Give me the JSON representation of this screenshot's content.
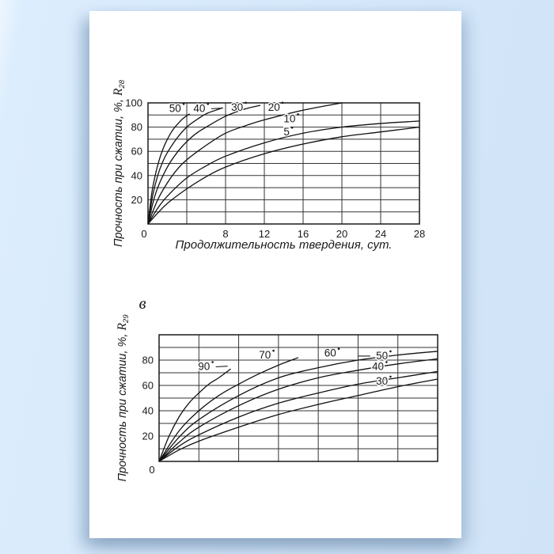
{
  "page": {
    "colors": {
      "background": "#d7e9fb",
      "paper": "#ffffff",
      "ink": "#1a1a1a",
      "grid": "#333333",
      "curve": "#111111"
    }
  },
  "chart_data": [
    {
      "type": "line",
      "panel_label": "",
      "title": "",
      "xlabel": "Продолжительность твердения, сут.",
      "ylabel": {
        "prefix": "Прочность при сжатии, %, ",
        "symbol": "R",
        "sub": "28"
      },
      "xlim": [
        0,
        28
      ],
      "ylim": [
        0,
        100
      ],
      "x_grid_step": 4,
      "y_grid_step": 10,
      "grid": true,
      "legend": "labels on curves",
      "x_ticks": [
        {
          "v": 0,
          "label": "0",
          "dx": -5
        },
        {
          "v": 8,
          "label": "8"
        },
        {
          "v": 12,
          "label": "12"
        },
        {
          "v": 16,
          "label": "16"
        },
        {
          "v": 20,
          "label": "20"
        },
        {
          "v": 24,
          "label": "24"
        },
        {
          "v": 28,
          "label": "28"
        }
      ],
      "y_ticks": [
        {
          "v": 100,
          "label": "100"
        },
        {
          "v": 80,
          "label": "80"
        },
        {
          "v": 60,
          "label": "60"
        },
        {
          "v": 40,
          "label": "40"
        },
        {
          "v": 20,
          "label": "20"
        }
      ],
      "series": [
        {
          "name": "50°C",
          "label": "50",
          "label_pos": [
            2.8,
            95.5
          ],
          "leader": null,
          "points": [
            [
              0,
              0
            ],
            [
              0.4,
              26
            ],
            [
              0.8,
              42
            ],
            [
              1.2,
              54
            ],
            [
              1.6,
              63
            ],
            [
              2,
              70
            ],
            [
              2.5,
              77
            ],
            [
              3,
              82
            ],
            [
              3.6,
              87
            ],
            [
              4.3,
              91
            ]
          ]
        },
        {
          "name": "40°C",
          "label": "40",
          "label_pos": [
            5.3,
            95.5
          ],
          "leader": "right",
          "points": [
            [
              0,
              0
            ],
            [
              0.5,
              24
            ],
            [
              1,
              40
            ],
            [
              1.5,
              51
            ],
            [
              2,
              59
            ],
            [
              3,
              71
            ],
            [
              4,
              80
            ],
            [
              5,
              86
            ],
            [
              6,
              91
            ],
            [
              7,
              94
            ],
            [
              7.7,
              96
            ]
          ]
        },
        {
          "name": "30°C",
          "label": "30",
          "label_pos": [
            9.2,
            96.5
          ],
          "leader": null,
          "points": [
            [
              0,
              0
            ],
            [
              0.5,
              17
            ],
            [
              1,
              30
            ],
            [
              2,
              47
            ],
            [
              3,
              59
            ],
            [
              4,
              68
            ],
            [
              5,
              75
            ],
            [
              6,
              80
            ],
            [
              8,
              89
            ],
            [
              10,
              95
            ],
            [
              11.6,
              98
            ]
          ]
        },
        {
          "name": "20°C",
          "label": "20",
          "label_pos": [
            13.0,
            96.5
          ],
          "leader": null,
          "points": [
            [
              0,
              0
            ],
            [
              1,
              20
            ],
            [
              2,
              34
            ],
            [
              3,
              45
            ],
            [
              4,
              53
            ],
            [
              6,
              65
            ],
            [
              8,
              75
            ],
            [
              10,
              81
            ],
            [
              12,
              86
            ],
            [
              16,
              94
            ],
            [
              20,
              100
            ]
          ]
        },
        {
          "name": "10°C",
          "label": "10",
          "label_pos": [
            14.6,
            87
          ],
          "leader": null,
          "points": [
            [
              0,
              0
            ],
            [
              1,
              13
            ],
            [
              2,
              23
            ],
            [
              4,
              38
            ],
            [
              6,
              48
            ],
            [
              8,
              56
            ],
            [
              12,
              67
            ],
            [
              16,
              75
            ],
            [
              20,
              80
            ],
            [
              24,
              83
            ],
            [
              28,
              85
            ]
          ]
        },
        {
          "name": "5°C",
          "label": "5",
          "label_pos": [
            14.3,
            76
          ],
          "leader": null,
          "points": [
            [
              0,
              0
            ],
            [
              1,
              9
            ],
            [
              2,
              17
            ],
            [
              4,
              29
            ],
            [
              6,
              39
            ],
            [
              8,
              47
            ],
            [
              12,
              58
            ],
            [
              16,
              66
            ],
            [
              20,
              72
            ],
            [
              24,
              76
            ],
            [
              28,
              80
            ]
          ]
        }
      ]
    },
    {
      "type": "line",
      "panel_label": "в",
      "title": "",
      "xlabel": "",
      "ylabel": {
        "prefix": "Прочность при сжатии, %, ",
        "symbol": "R",
        "sub": "29"
      },
      "xlim": [
        0,
        7
      ],
      "ylim": [
        0,
        100
      ],
      "x_grid_step": 1,
      "y_grid_step": 10,
      "grid": true,
      "legend": "labels on curves",
      "x_ticks": [
        {
          "v": 0,
          "label": "0",
          "dx": -9
        }
      ],
      "y_ticks": [
        {
          "v": 80,
          "label": "80"
        },
        {
          "v": 60,
          "label": "60"
        },
        {
          "v": 40,
          "label": "40"
        },
        {
          "v": 20,
          "label": "20"
        }
      ],
      "series": [
        {
          "name": "90°C",
          "label": "90",
          "label_pos": [
            1.13,
            75
          ],
          "leader": "right",
          "points": [
            [
              0,
              0
            ],
            [
              0.25,
              20
            ],
            [
              0.5,
              35
            ],
            [
              0.75,
              46
            ],
            [
              1,
              54
            ],
            [
              1.25,
              61
            ],
            [
              1.5,
              66
            ],
            [
              1.8,
              73
            ]
          ]
        },
        {
          "name": "70°C",
          "label": "70",
          "label_pos": [
            2.66,
            84
          ],
          "leader": null,
          "points": [
            [
              0,
              0
            ],
            [
              0.5,
              24
            ],
            [
              1,
              40
            ],
            [
              1.5,
              52
            ],
            [
              2,
              61
            ],
            [
              2.5,
              69
            ],
            [
              3,
              76
            ],
            [
              3.5,
              82
            ]
          ]
        },
        {
          "name": "60°C",
          "label": "60",
          "label_pos": [
            4.3,
            85.5
          ],
          "leader": null,
          "points": [
            [
              0,
              0
            ],
            [
              0.5,
              19
            ],
            [
              1,
              33
            ],
            [
              2,
              52
            ],
            [
              3,
              66
            ],
            [
              4,
              74
            ],
            [
              5,
              80
            ],
            [
              6,
              84
            ],
            [
              7,
              87
            ]
          ]
        },
        {
          "name": "50°C",
          "label": "50",
          "label_pos": [
            5.6,
            83.5
          ],
          "leader": "left",
          "points": [
            [
              0,
              0
            ],
            [
              0.5,
              15
            ],
            [
              1,
              27
            ],
            [
              2,
              44
            ],
            [
              3,
              57
            ],
            [
              4,
              66
            ],
            [
              5,
              72
            ],
            [
              6,
              77
            ],
            [
              7,
              81
            ]
          ]
        },
        {
          "name": "40°C",
          "label": "40",
          "label_pos": [
            5.5,
            75
          ],
          "leader": null,
          "points": [
            [
              0,
              0
            ],
            [
              0.5,
              12
            ],
            [
              1,
              21
            ],
            [
              2,
              35
            ],
            [
              3,
              46
            ],
            [
              4,
              54
            ],
            [
              5,
              61
            ],
            [
              6,
              66
            ],
            [
              7,
              71
            ]
          ]
        },
        {
          "name": "30°C",
          "label": "30",
          "label_pos": [
            5.6,
            63.5
          ],
          "leader": null,
          "points": [
            [
              0,
              0
            ],
            [
              0.5,
              9
            ],
            [
              1,
              16
            ],
            [
              2,
              27
            ],
            [
              3,
              37
            ],
            [
              4,
              45
            ],
            [
              5,
              52
            ],
            [
              6,
              59
            ],
            [
              7,
              65
            ]
          ]
        }
      ]
    }
  ]
}
